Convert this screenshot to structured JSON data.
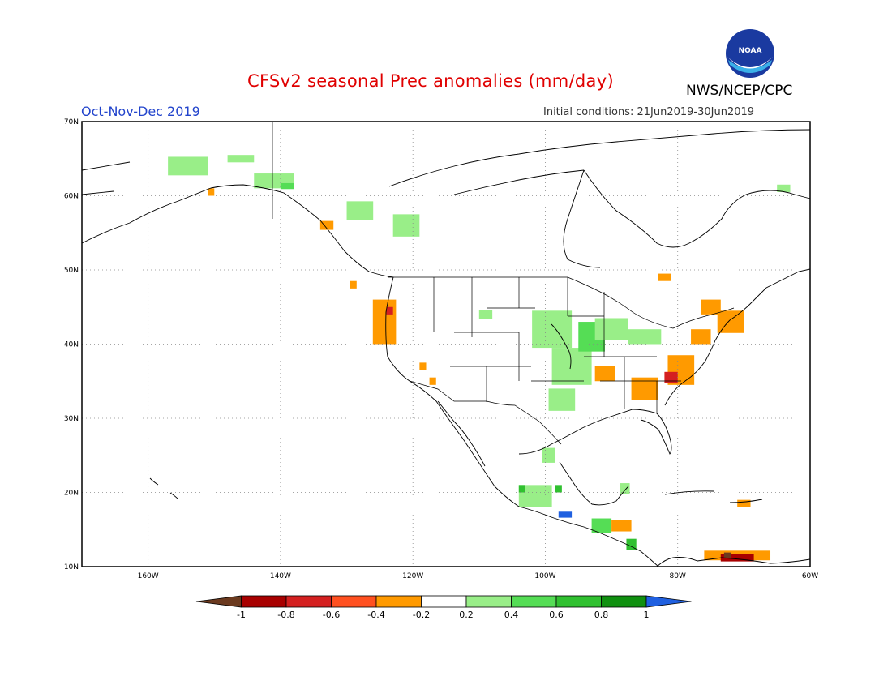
{
  "header": {
    "title": "CFSv2 seasonal Prec anomalies (mm/day)",
    "season": "Oct-Nov-Dec 2019",
    "init": "Initial conditions: 21Jun2019-30Jun2019",
    "agency": "NWS/NCEP/CPC",
    "logo_text": "NOAA"
  },
  "map": {
    "lon_range": [
      -170,
      -60
    ],
    "lat_range": [
      10,
      70
    ],
    "lat_ticks": [
      {
        "value": 70,
        "label": "70N"
      },
      {
        "value": 60,
        "label": "60N"
      },
      {
        "value": 50,
        "label": "50N"
      },
      {
        "value": 40,
        "label": "40N"
      },
      {
        "value": 30,
        "label": "30N"
      },
      {
        "value": 20,
        "label": "20N"
      },
      {
        "value": 10,
        "label": "10N"
      }
    ],
    "lon_ticks": [
      {
        "value": -160,
        "label": "160W"
      },
      {
        "value": -140,
        "label": "140W"
      },
      {
        "value": -120,
        "label": "120W"
      },
      {
        "value": -100,
        "label": "100W"
      },
      {
        "value": -80,
        "label": "80W"
      },
      {
        "value": -60,
        "label": "60W"
      }
    ]
  },
  "colorbar": {
    "colors": [
      "#6b3a1f",
      "#a80000",
      "#d42020",
      "#ff5020",
      "#ff9a00",
      "#ffffff",
      "#99ee88",
      "#55dd55",
      "#30c030",
      "#109010",
      "#2060e0"
    ],
    "labels": [
      "-1",
      "-0.8",
      "-0.6",
      "-0.4",
      "-0.2",
      "0.2",
      "0.4",
      "0.6",
      "0.8",
      "1"
    ]
  },
  "anomaly_cells": [
    {
      "lon": -154,
      "lat": 64,
      "w": 6,
      "h": 2.5,
      "level": 0.3
    },
    {
      "lon": -146,
      "lat": 65,
      "w": 4,
      "h": 1,
      "level": 0.3
    },
    {
      "lon": -141,
      "lat": 62,
      "w": 6,
      "h": 2,
      "level": 0.3
    },
    {
      "lon": -139,
      "lat": 61.3,
      "w": 2,
      "h": 0.8,
      "level": 0.5
    },
    {
      "lon": -150.5,
      "lat": 60.5,
      "w": 1,
      "h": 1,
      "level": -0.3
    },
    {
      "lon": -128,
      "lat": 58,
      "w": 4,
      "h": 2.5,
      "level": 0.3
    },
    {
      "lon": -121,
      "lat": 56,
      "w": 4,
      "h": 3,
      "level": 0.3
    },
    {
      "lon": -133,
      "lat": 56,
      "w": 2,
      "h": 1.2,
      "level": -0.3
    },
    {
      "lon": -129,
      "lat": 48,
      "w": 1,
      "h": 1,
      "level": -0.3
    },
    {
      "lon": -124.3,
      "lat": 43,
      "w": 3.5,
      "h": 6,
      "level": -0.3
    },
    {
      "lon": -123.5,
      "lat": 44.5,
      "w": 1,
      "h": 1,
      "level": -0.6
    },
    {
      "lon": -118.5,
      "lat": 37,
      "w": 1,
      "h": 1,
      "level": -0.3
    },
    {
      "lon": -117,
      "lat": 35,
      "w": 1,
      "h": 1,
      "level": -0.3
    },
    {
      "lon": -109,
      "lat": 44,
      "w": 2,
      "h": 1.2,
      "level": 0.3
    },
    {
      "lon": -99,
      "lat": 42,
      "w": 6,
      "h": 5,
      "level": 0.3
    },
    {
      "lon": -96,
      "lat": 37,
      "w": 6,
      "h": 5,
      "level": 0.3
    },
    {
      "lon": -93,
      "lat": 41,
      "w": 4,
      "h": 4,
      "level": 0.5
    },
    {
      "lon": -90,
      "lat": 42,
      "w": 5,
      "h": 3,
      "level": 0.3
    },
    {
      "lon": -85,
      "lat": 41,
      "w": 5,
      "h": 2,
      "level": 0.3
    },
    {
      "lon": -97.5,
      "lat": 32.5,
      "w": 4,
      "h": 3,
      "level": 0.3
    },
    {
      "lon": -91,
      "lat": 36,
      "w": 3,
      "h": 2,
      "level": -0.3
    },
    {
      "lon": -85,
      "lat": 34,
      "w": 4,
      "h": 3,
      "level": -0.3
    },
    {
      "lon": -79.5,
      "lat": 36.5,
      "w": 4,
      "h": 4,
      "level": -0.3
    },
    {
      "lon": -81,
      "lat": 35.5,
      "w": 2,
      "h": 1.5,
      "level": -0.5
    },
    {
      "lon": -76.5,
      "lat": 41,
      "w": 3,
      "h": 2,
      "level": -0.3
    },
    {
      "lon": -72,
      "lat": 43,
      "w": 4,
      "h": 3,
      "level": -0.3
    },
    {
      "lon": -75,
      "lat": 45,
      "w": 3,
      "h": 2,
      "level": -0.3
    },
    {
      "lon": -82,
      "lat": 49,
      "w": 2,
      "h": 1,
      "level": -0.3
    },
    {
      "lon": -99.5,
      "lat": 25,
      "w": 2,
      "h": 2,
      "level": 0.3
    },
    {
      "lon": -101.5,
      "lat": 19.5,
      "w": 5,
      "h": 3,
      "level": 0.3
    },
    {
      "lon": -103.5,
      "lat": 20.5,
      "w": 1,
      "h": 1,
      "level": 0.6
    },
    {
      "lon": -98,
      "lat": 20.5,
      "w": 1,
      "h": 1,
      "level": 0.6
    },
    {
      "lon": -97,
      "lat": 17,
      "w": 2,
      "h": 0.8,
      "level": 1.0
    },
    {
      "lon": -91.5,
      "lat": 15.5,
      "w": 3,
      "h": 2,
      "level": 0.5
    },
    {
      "lon": -88.5,
      "lat": 15.5,
      "w": 3,
      "h": 1.5,
      "level": -0.3
    },
    {
      "lon": -87,
      "lat": 13,
      "w": 1.5,
      "h": 1.5,
      "level": 0.6
    },
    {
      "lon": -71,
      "lat": 11.5,
      "w": 10,
      "h": 1.3,
      "level": -0.3
    },
    {
      "lon": -71,
      "lat": 11.2,
      "w": 5,
      "h": 1,
      "level": -0.8
    },
    {
      "lon": -72.5,
      "lat": 11.5,
      "w": 1,
      "h": 0.8,
      "level": -1.0
    },
    {
      "lon": -88,
      "lat": 20.5,
      "w": 1.5,
      "h": 1.5,
      "level": 0.3
    },
    {
      "lon": -70,
      "lat": 18.5,
      "w": 2,
      "h": 1,
      "level": -0.3
    },
    {
      "lon": -64,
      "lat": 61,
      "w": 2,
      "h": 1,
      "level": 0.3
    }
  ]
}
